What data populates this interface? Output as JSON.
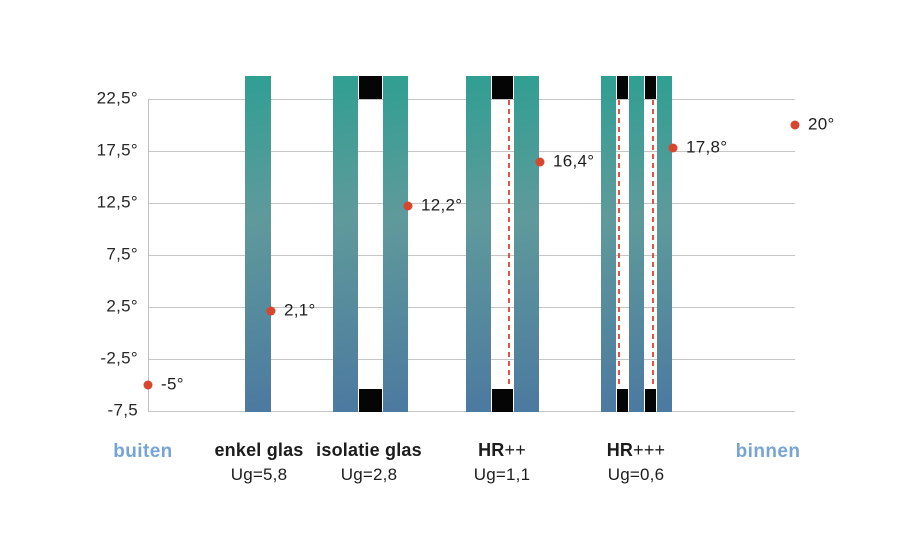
{
  "colors": {
    "glass_teal_top": "#2f9f92",
    "glass_blue_bottom": "#4c79a0",
    "spacer_black": "#050505",
    "dot_red": "#d8462e",
    "coating_dash_red": "#e0573f",
    "gridline_gray": "#c6c6c6",
    "zone_text_blue": "#76a5d5",
    "label_text": "#1c1c1c"
  },
  "chart_data": {
    "type": "scatter",
    "title": "",
    "ylabel": "",
    "xlabel": "",
    "ylim": [
      -7.5,
      22.5
    ],
    "grid": true,
    "legend": false,
    "y_axis": {
      "ticks": [
        {
          "label": "22,5°",
          "value": 22.5
        },
        {
          "label": "17,5°",
          "value": 17.5
        },
        {
          "label": "12,5°",
          "value": 12.5
        },
        {
          "label": "7,5°",
          "value": 7.5
        },
        {
          "label": "2,5°",
          "value": 2.5
        },
        {
          "label": "-2,5°",
          "value": -2.5
        },
        {
          "label": "-7,5",
          "value": -7.5
        }
      ]
    },
    "columns": [
      {
        "id": "buiten",
        "kind": "zone",
        "label": "buiten",
        "temp": {
          "value": -5,
          "label": "-5°"
        }
      },
      {
        "id": "enkel-glas",
        "kind": "glazing",
        "label": "enkel glas",
        "label_rest": "",
        "sublabel": "Ug=5,8",
        "panes": 1,
        "coatings": 0,
        "temp": {
          "value": 2.1,
          "label": "2,1°"
        }
      },
      {
        "id": "isolatie-glas",
        "kind": "glazing",
        "label": "isolatie glas",
        "label_rest": "",
        "sublabel": "Ug=2,8",
        "panes": 2,
        "coatings": 0,
        "temp": {
          "value": 12.2,
          "label": "12,2°"
        }
      },
      {
        "id": "hr-plus-plus",
        "kind": "glazing",
        "label": "HR",
        "label_rest": "++",
        "sublabel": "Ug=1,1",
        "panes": 2,
        "coatings": 1,
        "temp": {
          "value": 16.4,
          "label": "16,4°"
        }
      },
      {
        "id": "hr-plus-plus-plus",
        "kind": "glazing",
        "label": "HR",
        "label_rest": "+++",
        "sublabel": "Ug=0,6",
        "panes": 3,
        "coatings": 2,
        "temp": {
          "value": 17.8,
          "label": "17,8°"
        }
      },
      {
        "id": "binnen",
        "kind": "zone",
        "label": "binnen",
        "temp": {
          "value": 20,
          "label": "20°"
        }
      }
    ]
  }
}
